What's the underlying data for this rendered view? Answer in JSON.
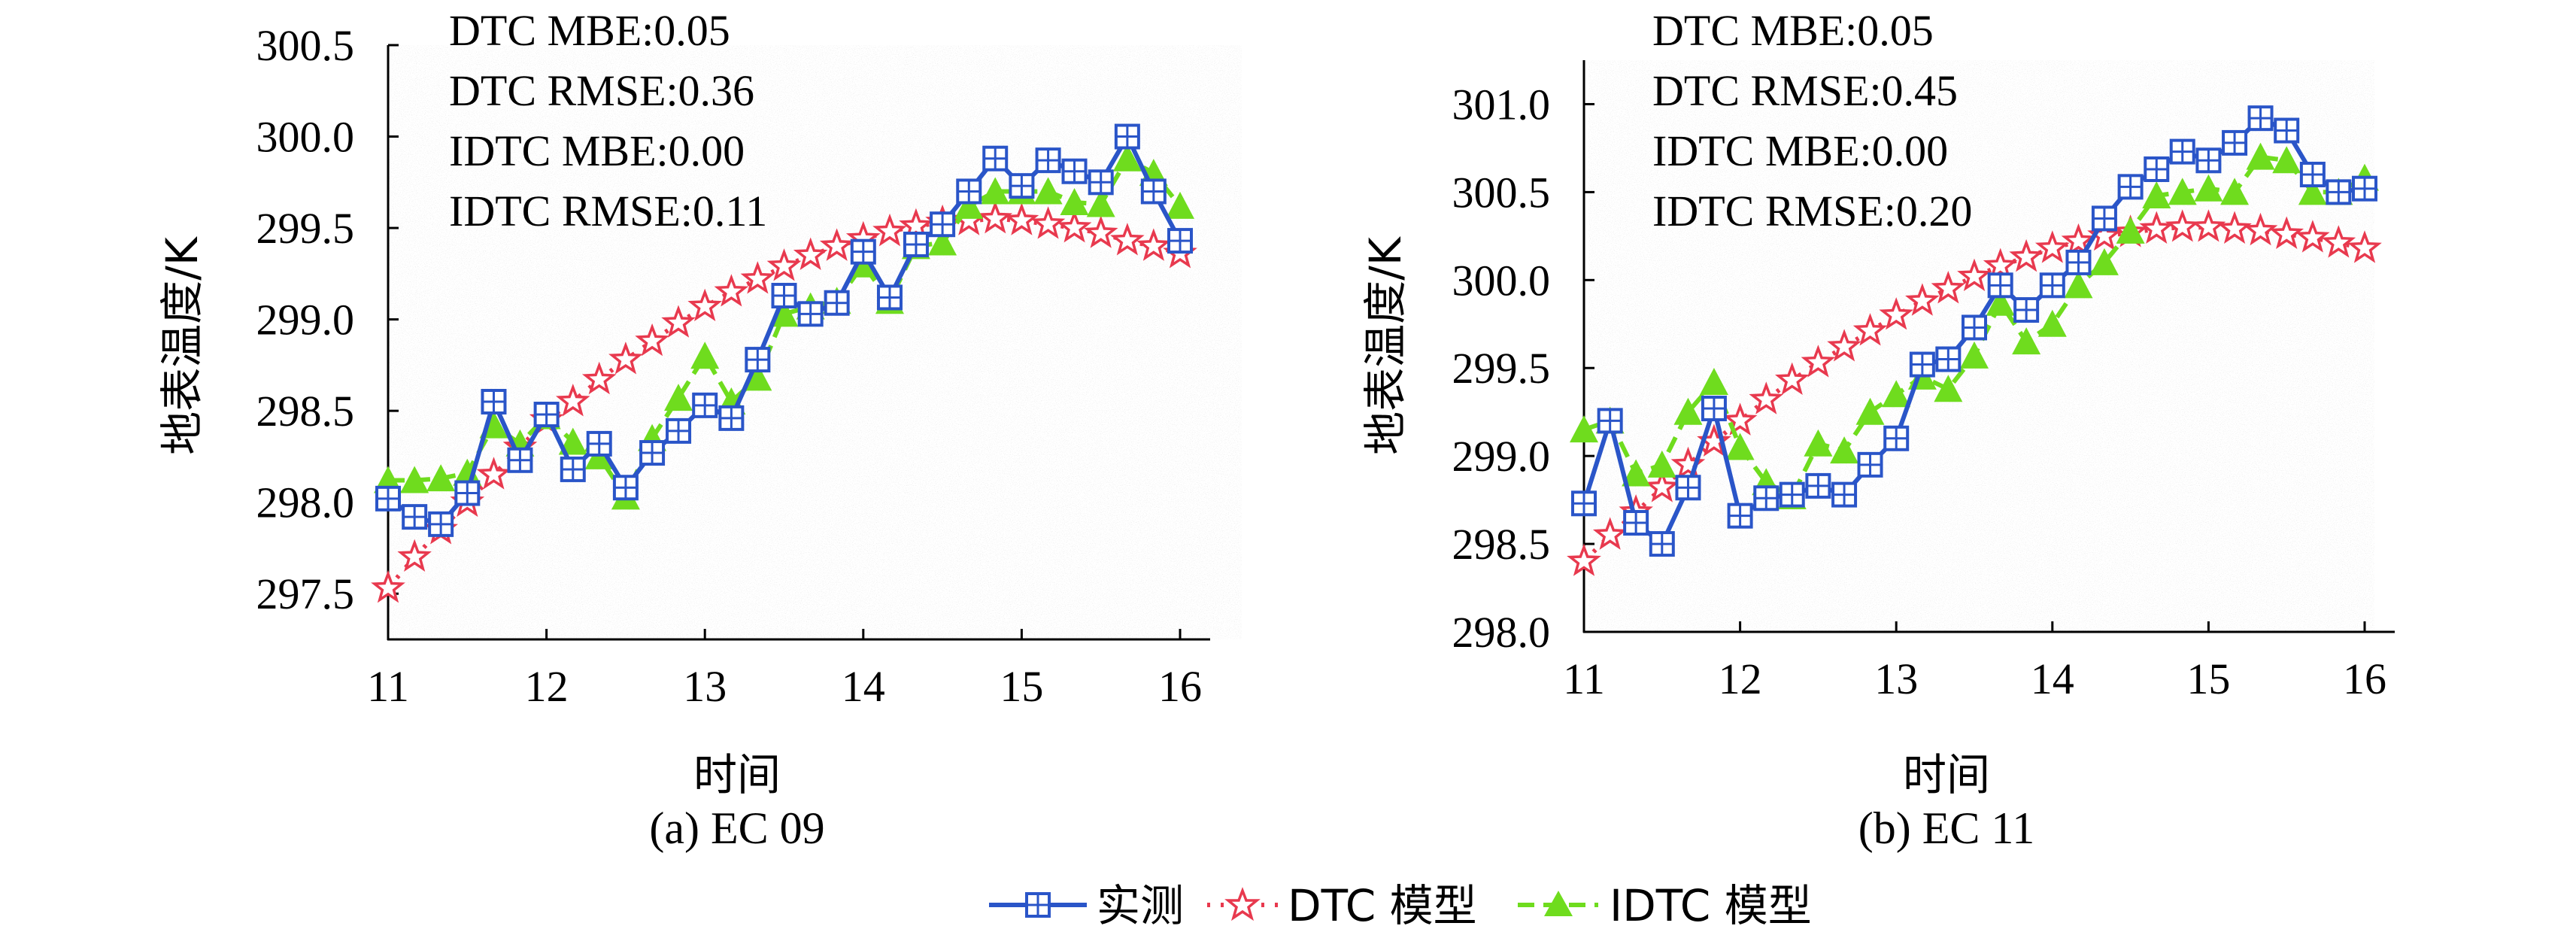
{
  "figure": {
    "legend": {
      "entries": [
        {
          "label": "实测",
          "color": "#2a55c8",
          "marker": "square-cross",
          "line": "solid"
        },
        {
          "label": "DTC 模型",
          "color": "#e8394e",
          "marker": "star-outline",
          "line": "dotted"
        },
        {
          "label": "IDTC 模型",
          "color": "#6fdc1e",
          "marker": "filled-triangle",
          "line": "dashed"
        }
      ]
    }
  },
  "chart_data": [
    {
      "type": "line",
      "caption": "(a) EC 09",
      "xlabel": "时间",
      "ylabel": "地表温度/K",
      "xlim": [
        11,
        16
      ],
      "ylim": [
        297.25,
        300.5
      ],
      "xticks": [
        "11",
        "12",
        "13",
        "14",
        "15",
        "16"
      ],
      "yticks": [
        "297.5",
        "298.0",
        "298.5",
        "299.0",
        "299.5",
        "300.0",
        "300.5"
      ],
      "annotations": [
        "DTC MBE:0.05",
        "DTC RMSE:0.36",
        "IDTC MBE:0.00",
        "IDTC RMSE:0.11"
      ],
      "x": [
        11.0,
        11.167,
        11.333,
        11.5,
        11.667,
        11.833,
        12.0,
        12.167,
        12.333,
        12.5,
        12.667,
        12.833,
        13.0,
        13.167,
        13.333,
        13.5,
        13.667,
        13.833,
        14.0,
        14.167,
        14.333,
        14.5,
        14.667,
        14.833,
        15.0,
        15.167,
        15.333,
        15.5,
        15.667,
        15.833,
        16.0
      ],
      "series": [
        {
          "name": "实测",
          "values": [
            298.02,
            297.92,
            297.88,
            298.05,
            298.55,
            298.23,
            298.48,
            298.18,
            298.32,
            298.08,
            298.27,
            298.39,
            298.53,
            298.46,
            298.78,
            299.13,
            299.03,
            299.09,
            299.37,
            299.12,
            299.41,
            299.52,
            299.7,
            299.88,
            299.73,
            299.87,
            299.81,
            299.75,
            300.0,
            299.7,
            299.43
          ]
        },
        {
          "name": "DTC 模型",
          "values": [
            297.53,
            297.7,
            297.85,
            298.0,
            298.15,
            298.3,
            298.45,
            298.55,
            298.67,
            298.78,
            298.88,
            298.98,
            299.07,
            299.15,
            299.22,
            299.29,
            299.35,
            299.4,
            299.44,
            299.48,
            299.51,
            299.53,
            299.54,
            299.55,
            299.54,
            299.52,
            299.5,
            299.47,
            299.43,
            299.4,
            299.36
          ]
        },
        {
          "name": "IDTC 模型",
          "values": [
            298.12,
            298.12,
            298.13,
            298.16,
            298.42,
            298.32,
            298.47,
            298.33,
            298.25,
            298.03,
            298.35,
            298.57,
            298.8,
            298.55,
            298.68,
            299.03,
            299.07,
            299.1,
            299.3,
            299.1,
            299.4,
            299.42,
            299.62,
            299.7,
            299.7,
            299.7,
            299.64,
            299.63,
            299.88,
            299.8,
            299.62
          ]
        }
      ]
    },
    {
      "type": "line",
      "caption": "(b) EC 11",
      "xlabel": "时间",
      "ylabel": "地表温度/K",
      "xlim": [
        11,
        16
      ],
      "ylim": [
        298.0,
        301.25
      ],
      "xticks": [
        "11",
        "12",
        "13",
        "14",
        "15",
        "16"
      ],
      "yticks": [
        "298.0",
        "298.5",
        "299.0",
        "299.5",
        "300.0",
        "300.5",
        "301.0"
      ],
      "annotations": [
        "DTC MBE:0.05",
        "DTC RMSE:0.45",
        "IDTC MBE:0.00",
        "IDTC RMSE:0.20"
      ],
      "x": [
        11.0,
        11.167,
        11.333,
        11.5,
        11.667,
        11.833,
        12.0,
        12.167,
        12.333,
        12.5,
        12.667,
        12.833,
        13.0,
        13.167,
        13.333,
        13.5,
        13.667,
        13.833,
        14.0,
        14.167,
        14.333,
        14.5,
        14.667,
        14.833,
        15.0,
        15.167,
        15.333,
        15.5,
        15.667,
        15.833,
        16.0
      ],
      "series": [
        {
          "name": "实测",
          "values": [
            298.73,
            299.2,
            298.62,
            298.5,
            298.82,
            299.27,
            298.66,
            298.76,
            298.78,
            298.83,
            298.78,
            298.95,
            299.1,
            299.52,
            299.55,
            299.73,
            299.97,
            299.83,
            299.97,
            300.1,
            300.35,
            300.53,
            300.63,
            300.73,
            300.68,
            300.78,
            300.92,
            300.85,
            300.6,
            300.5,
            300.52
          ]
        },
        {
          "name": "DTC 模型",
          "values": [
            298.4,
            298.55,
            298.68,
            298.82,
            298.95,
            299.08,
            299.2,
            299.32,
            299.43,
            299.53,
            299.62,
            299.71,
            299.8,
            299.88,
            299.95,
            300.02,
            300.08,
            300.13,
            300.18,
            300.22,
            300.25,
            300.27,
            300.29,
            300.3,
            300.3,
            300.29,
            300.28,
            300.26,
            300.24,
            300.21,
            300.18
          ]
        },
        {
          "name": "IDTC 模型",
          "values": [
            299.15,
            299.2,
            298.9,
            298.95,
            299.25,
            299.42,
            299.05,
            298.85,
            298.77,
            299.07,
            299.03,
            299.25,
            299.35,
            299.45,
            299.38,
            299.57,
            299.87,
            299.65,
            299.75,
            299.97,
            300.1,
            300.28,
            300.48,
            300.5,
            300.52,
            300.5,
            300.7,
            300.68,
            300.5,
            300.5,
            300.58
          ]
        }
      ]
    }
  ]
}
